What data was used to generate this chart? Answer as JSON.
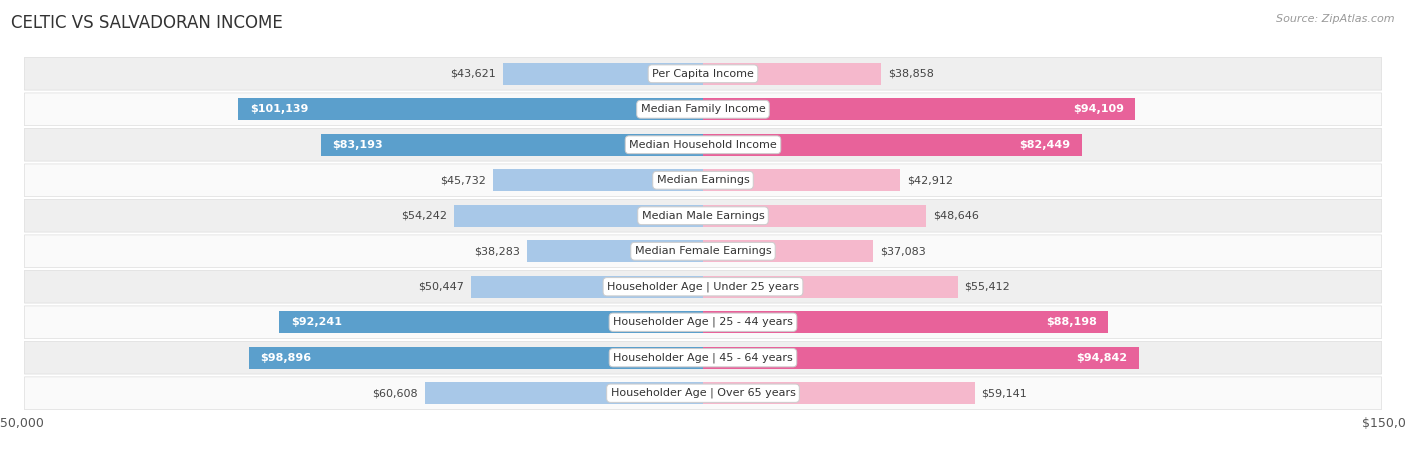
{
  "title": "Celtic vs Salvadoran Income",
  "title_display": "CELTIC VS SALVADORAN INCOME",
  "source": "Source: ZipAtlas.com",
  "categories": [
    "Per Capita Income",
    "Median Family Income",
    "Median Household Income",
    "Median Earnings",
    "Median Male Earnings",
    "Median Female Earnings",
    "Householder Age | Under 25 years",
    "Householder Age | 25 - 44 years",
    "Householder Age | 45 - 64 years",
    "Householder Age | Over 65 years"
  ],
  "celtic_values": [
    43621,
    101139,
    83193,
    45732,
    54242,
    38283,
    50447,
    92241,
    98896,
    60608
  ],
  "salvadoran_values": [
    38858,
    94109,
    82449,
    42912,
    48646,
    37083,
    55412,
    88198,
    94842,
    59141
  ],
  "celtic_labels": [
    "$43,621",
    "$101,139",
    "$83,193",
    "$45,732",
    "$54,242",
    "$38,283",
    "$50,447",
    "$92,241",
    "$98,896",
    "$60,608"
  ],
  "salvadoran_labels": [
    "$38,858",
    "$94,109",
    "$82,449",
    "$42,912",
    "$48,646",
    "$37,083",
    "$55,412",
    "$88,198",
    "$94,842",
    "$59,141"
  ],
  "celtic_color_light": "#a8c8e8",
  "celtic_color_strong": "#5b9fcc",
  "salvadoran_color_light": "#f5b8cc",
  "salvadoran_color_strong": "#e8629a",
  "max_value": 150000,
  "background_color": "#ffffff",
  "row_bg_odd": "#efefef",
  "row_bg_even": "#fafafa",
  "title_fontsize": 12,
  "label_fontsize": 8,
  "value_fontsize": 8,
  "legend_fontsize": 9,
  "source_fontsize": 8,
  "inside_threshold": 70000
}
